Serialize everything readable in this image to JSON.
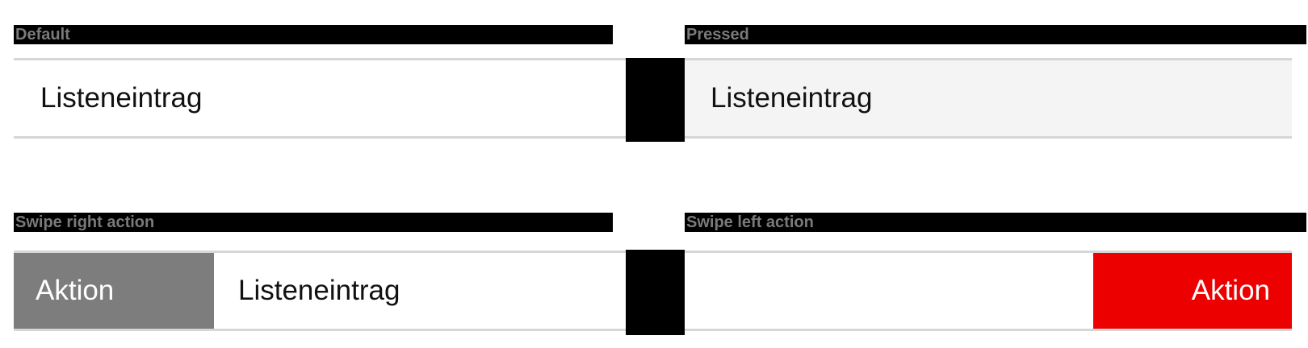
{
  "sections": {
    "default": {
      "label": "Default",
      "item_text": "Listeneintrag"
    },
    "pressed": {
      "label": "Pressed",
      "item_text": "Listeneintrag"
    },
    "swipe_right": {
      "label": "Swipe right action",
      "action_label": "Aktion",
      "item_text": "Listeneintrag"
    },
    "swipe_left": {
      "label": "Swipe left action",
      "action_label": "Aktion"
    }
  },
  "colors": {
    "pressed_background": "#f4f4f4",
    "neutral_action": "#7d7d7d",
    "destructive_action": "#ec0000"
  }
}
